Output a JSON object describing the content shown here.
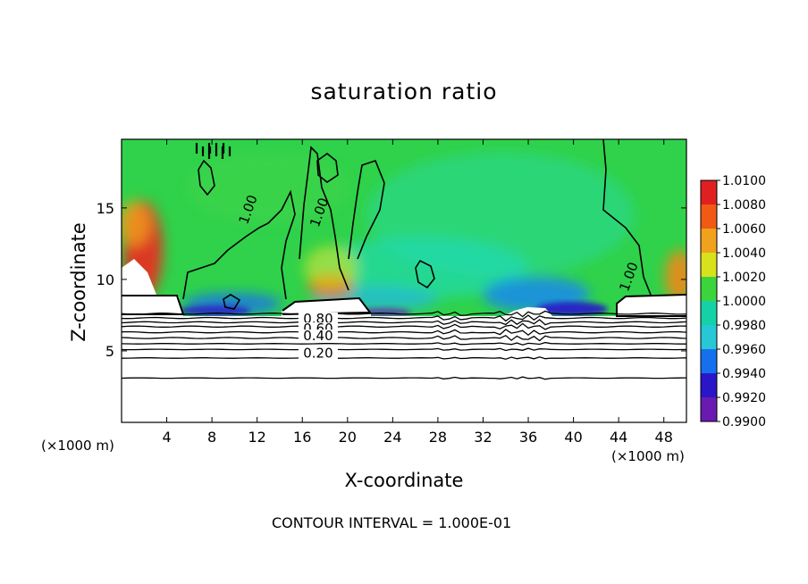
{
  "chart_data": {
    "type": "heatmap",
    "title": "saturation ratio",
    "xlabel": "X-coordinate",
    "ylabel": "Z-coordinate",
    "x_unit_left": "(×1000 m)",
    "x_unit_right": "(×1000 m)",
    "footnote": "CONTOUR INTERVAL = 1.000E-01",
    "xlim": [
      0,
      50
    ],
    "ylim": [
      0,
      19.8
    ],
    "x_ticks": [
      4,
      8,
      12,
      16,
      20,
      24,
      28,
      32,
      36,
      40,
      44,
      48
    ],
    "x_tick_labels": [
      "4",
      "8",
      "12",
      "16",
      "20",
      "24",
      "28",
      "32",
      "36",
      "40",
      "44",
      "48"
    ],
    "y_ticks": [
      5,
      10,
      15
    ],
    "y_tick_labels": [
      "5",
      "10",
      "15"
    ],
    "colorbar": {
      "levels": [
        0.99,
        0.992,
        0.994,
        0.996,
        0.998,
        1.0,
        1.002,
        1.004,
        1.006,
        1.008,
        1.01
      ],
      "labels": [
        "0.9900",
        "0.9920",
        "0.9940",
        "0.9960",
        "0.9980",
        "1.0000",
        "1.0020",
        "1.0040",
        "1.0060",
        "1.0080",
        "1.0100"
      ],
      "colors": [
        "#6a1ab0",
        "#2a16c8",
        "#1670ee",
        "#26c8d6",
        "#14d2a6",
        "#3cd43c",
        "#d8e21c",
        "#f0a21c",
        "#f05a14",
        "#e02020",
        "#f2a0a8"
      ]
    },
    "contour_lines": [
      {
        "label": "1.00",
        "x": 11.5,
        "z": 14.8
      },
      {
        "label": "1.00",
        "x": 17.8,
        "z": 14.6
      },
      {
        "label": "1.00",
        "x": 45.2,
        "z": 10.1
      },
      {
        "label": "0.80",
        "x": 17.4,
        "z": 7.0
      },
      {
        "label": "0.60",
        "x": 17.4,
        "z": 6.3
      },
      {
        "label": "0.40",
        "x": 17.4,
        "z": 5.8
      },
      {
        "label": "0.20",
        "x": 17.4,
        "z": 4.6
      }
    ],
    "stable_layer_contours_z": [
      7.6,
      7.3,
      7.0,
      6.7,
      6.3,
      5.9,
      5.5,
      5.1,
      4.5,
      3.1
    ],
    "cloud_top_z": 8.7
  }
}
